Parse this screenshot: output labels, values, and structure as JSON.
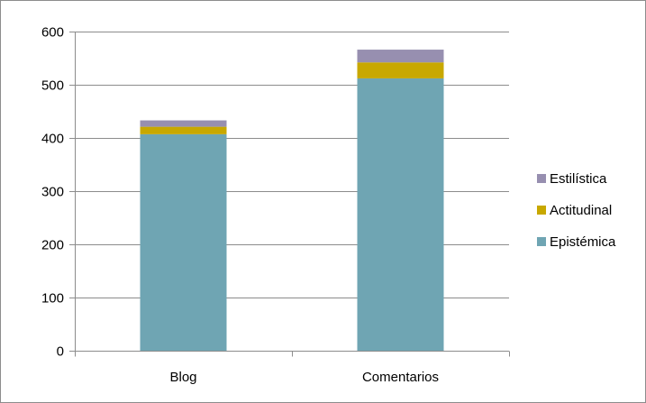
{
  "chart_data": {
    "type": "bar",
    "stacked": true,
    "categories": [
      "Blog",
      "Comentarios"
    ],
    "series": [
      {
        "name": "Epistémica",
        "values": [
          407,
          512
        ],
        "color": "#6fa5b3"
      },
      {
        "name": "Actitudinal",
        "values": [
          14,
          30
        ],
        "color": "#c8a800"
      },
      {
        "name": "Estilística",
        "values": [
          12,
          24
        ],
        "color": "#978fb0"
      }
    ],
    "ylim": [
      0,
      600
    ],
    "yticks": [
      0,
      100,
      200,
      300,
      400,
      500,
      600
    ],
    "grid": true,
    "legend_position": "right",
    "title": "",
    "xlabel": "",
    "ylabel": ""
  }
}
